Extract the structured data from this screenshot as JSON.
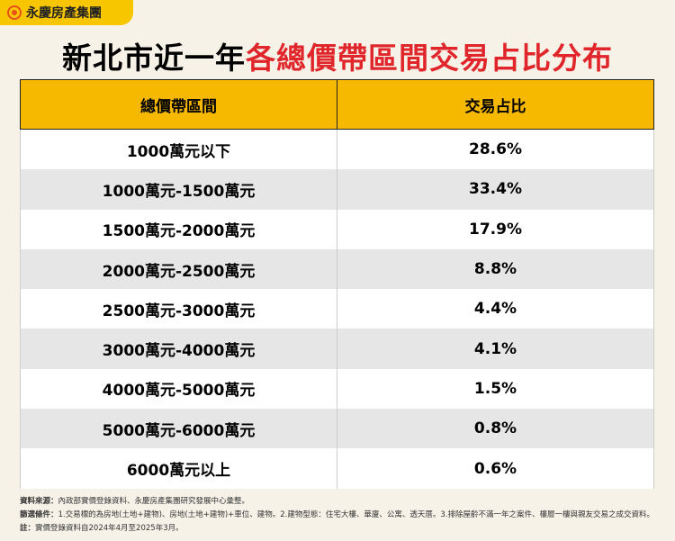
{
  "header": {
    "brand": "永慶房產集團",
    "title_black": "新北市近一年",
    "title_red": "各總價帶區間交易占比分布"
  },
  "table": {
    "header": [
      "總價帶區間",
      "交易占比"
    ],
    "rows": [
      [
        "1000萬元以下",
        "28.6%"
      ],
      [
        "1000萬元-1500萬元",
        "33.4%"
      ],
      [
        "1500萬元-2000萬元",
        "17.9%"
      ],
      [
        "2000萬元-2500萬元",
        "8.8%"
      ],
      [
        "2500萬元-3000萬元",
        "4.4%"
      ],
      [
        "3000萬元-4000萬元",
        "4.1%"
      ],
      [
        "4000萬元-5000萬元",
        "1.5%"
      ],
      [
        "5000萬元-6000萬元",
        "0.8%"
      ],
      [
        "6000萬元以上",
        "0.6%"
      ]
    ]
  },
  "footer": {
    "notes": [
      {
        "label": "資料來源：",
        "text": "內政部實價登錄資料、永慶房產集團研究發展中心彙整。"
      },
      {
        "label": "篩選條件：",
        "text": "1.交易標的為房地(土地+建物)、房地(土地+建物)+車位、建物。2.建物型態：住宅大樓、華廈、公寓、透天厝。3.排除屋齡不滿一年之案件、樓層一樓與親友交易之成交資料。"
      },
      {
        "label": "註：",
        "text": "實價登錄資料自2024年4月至2025年3月。"
      }
    ]
  }
}
